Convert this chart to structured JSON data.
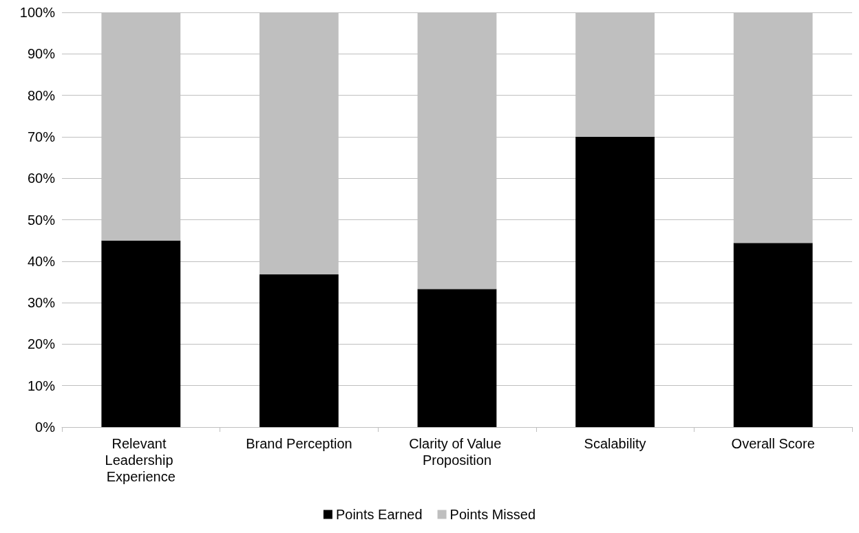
{
  "chart_data": {
    "type": "bar",
    "stacked": true,
    "categories": [
      "Relevant Leadership Experience",
      "Brand Perception",
      "Clarity of Value Proposition",
      "Scalability",
      "Overall Score"
    ],
    "series": [
      {
        "name": "Points Earned",
        "color": "#000000",
        "values": [
          45,
          36.8,
          33.3,
          70,
          44.4
        ]
      },
      {
        "name": "Points Missed",
        "color": "#bfbfbf",
        "values": [
          55,
          63.2,
          66.7,
          30,
          55.6
        ]
      }
    ],
    "ylim": [
      0,
      100
    ],
    "yticks": [
      {
        "value": 0,
        "label": "0%"
      },
      {
        "value": 10,
        "label": "10%"
      },
      {
        "value": 20,
        "label": "20%"
      },
      {
        "value": 30,
        "label": "30%"
      },
      {
        "value": 40,
        "label": "40%"
      },
      {
        "value": 50,
        "label": "50%"
      },
      {
        "value": 60,
        "label": "60%"
      },
      {
        "value": 70,
        "label": "70%"
      },
      {
        "value": 80,
        "label": "80%"
      },
      {
        "value": 90,
        "label": "90%"
      },
      {
        "value": 100,
        "label": "100%"
      }
    ],
    "grid": "y",
    "legend": "bottom"
  }
}
